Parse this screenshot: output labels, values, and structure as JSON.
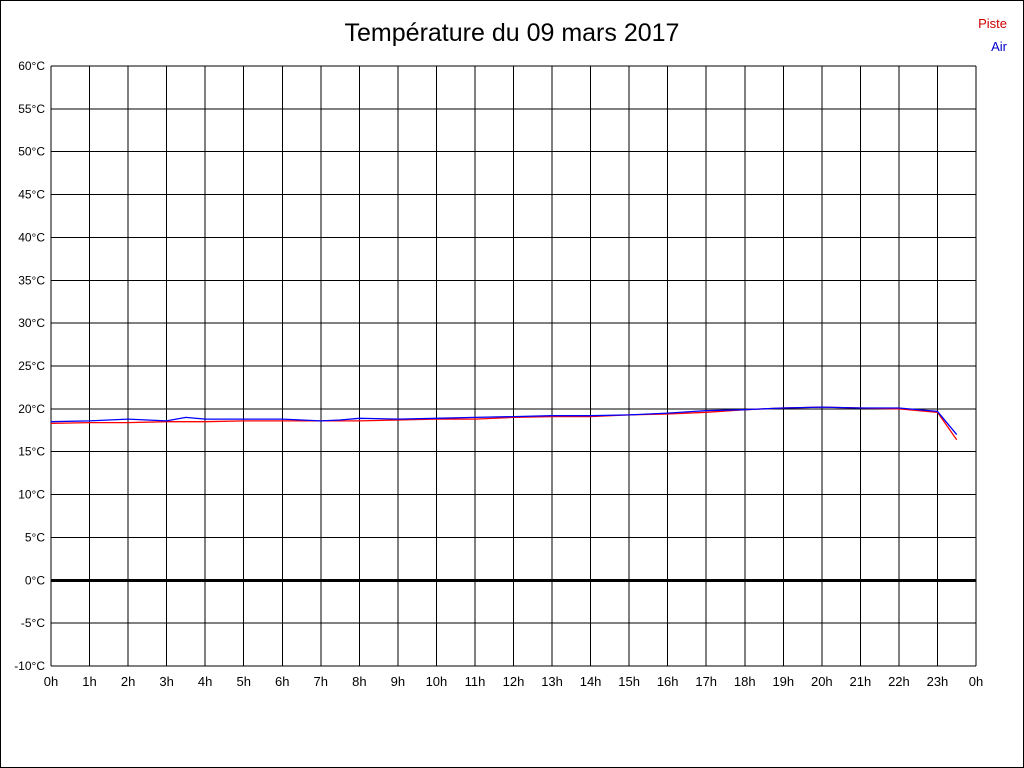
{
  "title": "Température du 09 mars 2017",
  "legend": [
    {
      "label": "Piste",
      "color": "#cc0000"
    },
    {
      "label": "Air",
      "color": "#0000cc"
    }
  ],
  "chart_data": {
    "type": "line",
    "title": "Température du 09 mars 2017",
    "xlabel": "",
    "ylabel": "",
    "xlim": [
      0,
      24
    ],
    "ylim": [
      -10,
      60
    ],
    "grid": true,
    "legend_position": "top-right",
    "zero_line": {
      "value": 0,
      "color": "#000000",
      "width": 3
    },
    "yticks": [
      {
        "value": -10,
        "label": "-10°C"
      },
      {
        "value": -5,
        "label": "-5°C"
      },
      {
        "value": 0,
        "label": "0°C"
      },
      {
        "value": 5,
        "label": "5°C"
      },
      {
        "value": 10,
        "label": "10°C"
      },
      {
        "value": 15,
        "label": "15°C"
      },
      {
        "value": 20,
        "label": "20°C"
      },
      {
        "value": 25,
        "label": "25°C"
      },
      {
        "value": 30,
        "label": "30°C"
      },
      {
        "value": 35,
        "label": "35°C"
      },
      {
        "value": 40,
        "label": "40°C"
      },
      {
        "value": 45,
        "label": "45°C"
      },
      {
        "value": 50,
        "label": "50°C"
      },
      {
        "value": 55,
        "label": "55°C"
      },
      {
        "value": 60,
        "label": "60°C"
      }
    ],
    "xticks": [
      {
        "value": 0,
        "label": "0h"
      },
      {
        "value": 1,
        "label": "1h"
      },
      {
        "value": 2,
        "label": "2h"
      },
      {
        "value": 3,
        "label": "3h"
      },
      {
        "value": 4,
        "label": "4h"
      },
      {
        "value": 5,
        "label": "5h"
      },
      {
        "value": 6,
        "label": "6h"
      },
      {
        "value": 7,
        "label": "7h"
      },
      {
        "value": 8,
        "label": "8h"
      },
      {
        "value": 9,
        "label": "9h"
      },
      {
        "value": 10,
        "label": "10h"
      },
      {
        "value": 11,
        "label": "11h"
      },
      {
        "value": 12,
        "label": "12h"
      },
      {
        "value": 13,
        "label": "13h"
      },
      {
        "value": 14,
        "label": "14h"
      },
      {
        "value": 15,
        "label": "15h"
      },
      {
        "value": 16,
        "label": "16h"
      },
      {
        "value": 17,
        "label": "17h"
      },
      {
        "value": 18,
        "label": "18h"
      },
      {
        "value": 19,
        "label": "19h"
      },
      {
        "value": 20,
        "label": "20h"
      },
      {
        "value": 21,
        "label": "21h"
      },
      {
        "value": 22,
        "label": "22h"
      },
      {
        "value": 23,
        "label": "23h"
      },
      {
        "value": 24,
        "label": "0h"
      }
    ],
    "series": [
      {
        "name": "Piste",
        "color": "#ff0000",
        "x": [
          0,
          1,
          2,
          3,
          4,
          5,
          6,
          7,
          8,
          9,
          10,
          11,
          12,
          13,
          14,
          15,
          16,
          17,
          18,
          19,
          20,
          21,
          22,
          23,
          23.5
        ],
        "values": [
          18.3,
          18.4,
          18.4,
          18.5,
          18.5,
          18.6,
          18.6,
          18.6,
          18.6,
          18.7,
          18.8,
          18.8,
          19.0,
          19.1,
          19.1,
          19.3,
          19.4,
          19.6,
          19.9,
          20.1,
          20.2,
          20.1,
          20.0,
          19.6,
          16.4
        ]
      },
      {
        "name": "Air",
        "color": "#0000ff",
        "x": [
          0,
          1,
          2,
          2.5,
          3,
          3.5,
          4,
          5,
          6,
          7,
          7.5,
          8,
          9,
          10,
          11,
          12,
          13,
          14,
          15,
          16,
          17,
          18,
          19,
          20,
          21,
          22,
          23,
          23.5
        ],
        "values": [
          18.5,
          18.6,
          18.8,
          18.7,
          18.6,
          19.0,
          18.8,
          18.8,
          18.8,
          18.6,
          18.7,
          18.9,
          18.8,
          18.9,
          19.0,
          19.1,
          19.2,
          19.2,
          19.3,
          19.5,
          19.8,
          19.9,
          20.1,
          20.2,
          20.1,
          20.1,
          19.7,
          17.0
        ]
      }
    ]
  }
}
